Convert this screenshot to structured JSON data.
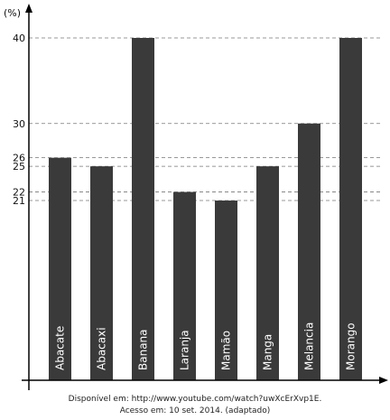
{
  "chart_data": {
    "type": "bar",
    "ylabel": "(%)",
    "categories": [
      "Abacate",
      "Abacaxi",
      "Banana",
      "Laranja",
      "Mamão",
      "Manga",
      "Melancia",
      "Morango"
    ],
    "values": [
      26,
      25,
      40,
      22,
      21,
      25,
      30,
      40
    ],
    "yticks": [
      21,
      22,
      25,
      26,
      30,
      40
    ],
    "bar_color": "#3a3a3a",
    "grid": "dashed horizontal at tick values"
  },
  "source": {
    "line1": "Disponível em: http://www.youtube.com/watch?uwXcErXvp1E.",
    "line2": "Acesso em: 10 set. 2014. (adaptado)"
  }
}
